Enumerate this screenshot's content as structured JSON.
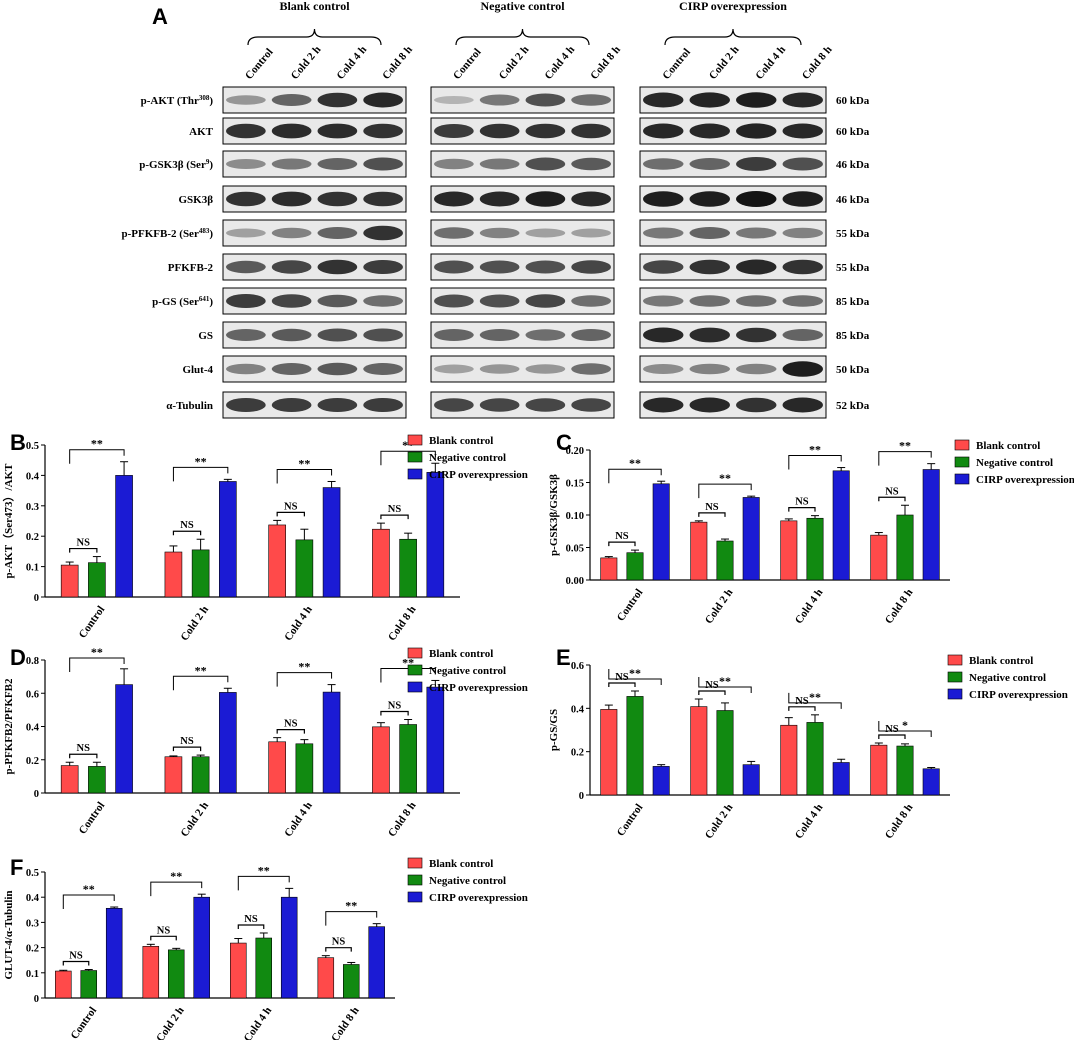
{
  "panel_a": {
    "letter": "A",
    "groups": [
      "Blank control",
      "Negative control",
      "CIRP overexpression"
    ],
    "lanes": [
      "Control",
      "Cold 2 h",
      "Cold 4 h",
      "Cold 8 h"
    ],
    "proteins": [
      {
        "pre": "p-AKT (Thr",
        "sup": "308",
        "post": ")",
        "kda": "60 kDa"
      },
      {
        "pre": "AKT",
        "sup": "",
        "post": "",
        "kda": "60 kDa"
      },
      {
        "pre": "p-GSK3β (Ser",
        "sup": "9",
        "post": ")",
        "kda": "46 kDa"
      },
      {
        "pre": "GSK3β",
        "sup": "",
        "post": "",
        "kda": "46 kDa"
      },
      {
        "pre": "p-PFKFB-2 (Ser",
        "sup": "483",
        "post": ")",
        "kda": "55 kDa"
      },
      {
        "pre": "PFKFB-2",
        "sup": "",
        "post": "",
        "kda": "55 kDa"
      },
      {
        "pre": "p-GS (Ser",
        "sup": "641",
        "post": ")",
        "kda": "85 kDa"
      },
      {
        "pre": "GS",
        "sup": "",
        "post": "",
        "kda": "85 kDa"
      },
      {
        "pre": "Glut-4",
        "sup": "",
        "post": "",
        "kda": "50 kDa"
      },
      {
        "pre": "α-Tubulin",
        "sup": "",
        "post": "",
        "kda": "52 kDa"
      }
    ],
    "band_intensity": [
      [
        [
          0.35,
          0.6,
          0.85,
          0.9
        ],
        [
          0.2,
          0.5,
          0.7,
          0.55
        ],
        [
          0.9,
          0.92,
          0.95,
          0.9
        ]
      ],
      [
        [
          0.85,
          0.88,
          0.88,
          0.85
        ],
        [
          0.8,
          0.85,
          0.85,
          0.85
        ],
        [
          0.9,
          0.9,
          0.92,
          0.9
        ]
      ],
      [
        [
          0.4,
          0.5,
          0.6,
          0.7
        ],
        [
          0.45,
          0.5,
          0.7,
          0.65
        ],
        [
          0.55,
          0.6,
          0.8,
          0.7
        ]
      ],
      [
        [
          0.85,
          0.88,
          0.85,
          0.85
        ],
        [
          0.9,
          0.9,
          0.95,
          0.9
        ],
        [
          0.95,
          0.95,
          1.0,
          0.95
        ]
      ],
      [
        [
          0.3,
          0.45,
          0.6,
          0.85
        ],
        [
          0.55,
          0.45,
          0.3,
          0.3
        ],
        [
          0.5,
          0.6,
          0.5,
          0.45
        ]
      ],
      [
        [
          0.65,
          0.75,
          0.85,
          0.8
        ],
        [
          0.7,
          0.7,
          0.7,
          0.75
        ],
        [
          0.75,
          0.85,
          0.9,
          0.85
        ]
      ],
      [
        [
          0.8,
          0.75,
          0.65,
          0.55
        ],
        [
          0.7,
          0.7,
          0.75,
          0.55
        ],
        [
          0.5,
          0.55,
          0.55,
          0.55
        ]
      ],
      [
        [
          0.6,
          0.65,
          0.7,
          0.7
        ],
        [
          0.6,
          0.6,
          0.55,
          0.6
        ],
        [
          0.9,
          0.88,
          0.85,
          0.6
        ]
      ],
      [
        [
          0.45,
          0.6,
          0.65,
          0.6
        ],
        [
          0.3,
          0.35,
          0.35,
          0.55
        ],
        [
          0.4,
          0.45,
          0.45,
          0.95
        ]
      ],
      [
        [
          0.8,
          0.8,
          0.8,
          0.8
        ],
        [
          0.75,
          0.75,
          0.75,
          0.75
        ],
        [
          0.9,
          0.9,
          0.85,
          0.9
        ]
      ]
    ]
  },
  "chart_data": [
    {
      "type": "bar",
      "panel": "B",
      "ylabel": "p-AKT（Ser473）/AKT",
      "ylim": [
        0,
        0.5
      ],
      "yticks": [
        0,
        0.1,
        0.2,
        0.3,
        0.4,
        0.5
      ],
      "categories": [
        "Control",
        "Cold 2 h",
        "Cold 4 h",
        "Cold 8 h"
      ],
      "series": [
        {
          "name": "Blank control",
          "values": [
            0.105,
            0.148,
            0.237,
            0.223
          ],
          "errors": [
            0.01,
            0.02,
            0.015,
            0.02
          ]
        },
        {
          "name": "Negative control",
          "values": [
            0.113,
            0.155,
            0.188,
            0.19
          ],
          "errors": [
            0.02,
            0.035,
            0.035,
            0.02
          ]
        },
        {
          "name": "CIRP overexpression",
          "values": [
            0.4,
            0.38,
            0.36,
            0.41
          ],
          "errors": [
            0.045,
            0.007,
            0.02,
            0.03
          ]
        }
      ],
      "annotations": [
        {
          "category": 0,
          "ns": "NS",
          "sig": "**"
        },
        {
          "category": 1,
          "ns": "NS",
          "sig": "**"
        },
        {
          "category": 2,
          "ns": "NS",
          "sig": "**"
        },
        {
          "category": 3,
          "ns": "NS",
          "sig": "**"
        }
      ],
      "legend_position": "top-right"
    },
    {
      "type": "bar",
      "panel": "C",
      "ylabel": "p-GSK3β/GSK3β",
      "ylim": [
        0,
        0.2
      ],
      "yticks": [
        "0.00",
        "0.05",
        "0.10",
        "0.15",
        "0.20"
      ],
      "categories": [
        "Control",
        "Cold 2 h",
        "Cold 4 h",
        "Cold 8 h"
      ],
      "series": [
        {
          "name": "Blank control",
          "values": [
            0.034,
            0.089,
            0.091,
            0.069
          ],
          "errors": [
            0.002,
            0.002,
            0.003,
            0.004
          ]
        },
        {
          "name": "Negative control",
          "values": [
            0.042,
            0.06,
            0.095,
            0.1
          ],
          "errors": [
            0.004,
            0.003,
            0.004,
            0.015
          ]
        },
        {
          "name": "CIRP overexpression",
          "values": [
            0.148,
            0.127,
            0.168,
            0.17
          ],
          "errors": [
            0.004,
            0.002,
            0.005,
            0.009
          ]
        }
      ],
      "annotations": [
        {
          "category": 0,
          "ns": "NS",
          "sig": "**"
        },
        {
          "category": 1,
          "ns": "NS",
          "sig": "**"
        },
        {
          "category": 2,
          "ns": "NS",
          "sig": "**"
        },
        {
          "category": 3,
          "ns": "NS",
          "sig": "**"
        }
      ],
      "legend_position": "top-right"
    },
    {
      "type": "bar",
      "panel": "D",
      "ylabel": "p-PFKFB2/PFKFB2",
      "ylim": [
        0,
        0.8
      ],
      "yticks": [
        0,
        0.2,
        0.4,
        0.6,
        0.8
      ],
      "categories": [
        "Control",
        "Cold 2 h",
        "Cold 4 h",
        "Cold 8 h"
      ],
      "series": [
        {
          "name": "Blank control",
          "values": [
            0.165,
            0.218,
            0.308,
            0.398
          ],
          "errors": [
            0.02,
            0.005,
            0.025,
            0.025
          ]
        },
        {
          "name": "Negative control",
          "values": [
            0.16,
            0.218,
            0.296,
            0.412
          ],
          "errors": [
            0.025,
            0.01,
            0.025,
            0.03
          ]
        },
        {
          "name": "CIRP overexpression",
          "values": [
            0.652,
            0.605,
            0.607,
            0.637
          ],
          "errors": [
            0.095,
            0.025,
            0.045,
            0.04
          ]
        }
      ],
      "annotations": [
        {
          "category": 0,
          "ns": "NS",
          "sig": "**"
        },
        {
          "category": 1,
          "ns": "NS",
          "sig": "**"
        },
        {
          "category": 2,
          "ns": "NS",
          "sig": "**"
        },
        {
          "category": 3,
          "ns": "NS",
          "sig": "**"
        }
      ],
      "legend_position": "top-right"
    },
    {
      "type": "bar",
      "panel": "E",
      "ylabel": "p-GS/GS",
      "ylim": [
        0,
        0.6
      ],
      "yticks": [
        0.0,
        0.2,
        0.4,
        0.6
      ],
      "categories": [
        "Control",
        "Cold 2 h",
        "Cold 4 h",
        "Cold 8 h"
      ],
      "series": [
        {
          "name": "Blank control",
          "values": [
            0.395,
            0.408,
            0.322,
            0.23
          ],
          "errors": [
            0.02,
            0.035,
            0.035,
            0.01
          ]
        },
        {
          "name": "Negative control",
          "values": [
            0.455,
            0.39,
            0.335,
            0.226
          ],
          "errors": [
            0.025,
            0.035,
            0.035,
            0.01
          ]
        },
        {
          "name": "CIRP overexpression",
          "values": [
            0.132,
            0.14,
            0.15,
            0.121
          ],
          "errors": [
            0.008,
            0.015,
            0.015,
            0.006
          ]
        }
      ],
      "annotations": [
        {
          "category": 0,
          "ns": "NS",
          "sig": "**"
        },
        {
          "category": 1,
          "ns": "NS",
          "sig": "**"
        },
        {
          "category": 2,
          "ns": "NS",
          "sig": "**"
        },
        {
          "category": 3,
          "ns": "NS",
          "sig": "*"
        }
      ],
      "legend_position": "top-right"
    },
    {
      "type": "bar",
      "panel": "F",
      "ylabel": "GLUT-4/α-Tubulin",
      "ylim": [
        0,
        0.5
      ],
      "yticks": [
        0,
        0.1,
        0.2,
        0.3,
        0.4,
        0.5
      ],
      "categories": [
        "Control",
        "Cold 2 h",
        "Cold 4 h",
        "Cold 8 h"
      ],
      "series": [
        {
          "name": "Blank control",
          "values": [
            0.107,
            0.205,
            0.218,
            0.16
          ],
          "errors": [
            0.003,
            0.008,
            0.018,
            0.008
          ]
        },
        {
          "name": "Negative control",
          "values": [
            0.109,
            0.191,
            0.238,
            0.133
          ],
          "errors": [
            0.004,
            0.006,
            0.02,
            0.008
          ]
        },
        {
          "name": "CIRP overexpression",
          "values": [
            0.356,
            0.4,
            0.4,
            0.283
          ],
          "errors": [
            0.005,
            0.012,
            0.035,
            0.012
          ]
        }
      ],
      "annotations": [
        {
          "category": 0,
          "ns": "NS",
          "sig": "**"
        },
        {
          "category": 1,
          "ns": "NS",
          "sig": "**"
        },
        {
          "category": 2,
          "ns": "NS",
          "sig": "**"
        },
        {
          "category": 3,
          "ns": "NS",
          "sig": "**"
        }
      ],
      "legend_position": "top-right"
    }
  ],
  "colors": {
    "Blank control": "#ff4a4a",
    "Negative control": "#118a11",
    "CIRP overexpression": "#1b1bd4"
  }
}
